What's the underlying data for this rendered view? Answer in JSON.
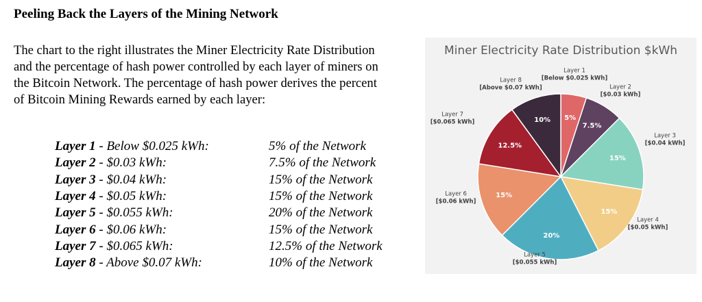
{
  "heading": "Peeling Back the Layers of the Mining Network",
  "paragraph": "The chart to the right illustrates the Miner Electricity Rate Distribution and the percentage of hash power controlled by each layer of miners on the Bitcoin Network. The percentage of hash power derives the percent of Bitcoin Mining Rewards earned by each layer:",
  "table": {
    "rows": [
      [
        "Layer 1",
        "- Below $0.025 kWh:",
        "5% of the Network"
      ],
      [
        "Layer 2",
        "- $0.03 kWh:",
        "7.5% of the Network"
      ],
      [
        "Layer 3",
        "- $0.04 kWh:",
        "15% of the Network"
      ],
      [
        "Layer 4",
        "- $0.05 kWh:",
        "15% of the Network"
      ],
      [
        "Layer 5",
        "- $0.055 kWh:",
        "20% of the Network"
      ],
      [
        "Layer 6",
        "- $0.06 kWh:",
        "15% of the Network"
      ],
      [
        "Layer 7",
        "- $0.065 kWh:",
        "12.5% of the Network"
      ],
      [
        "Layer 8",
        "- Above $0.07 kWh:",
        "10% of the Network"
      ]
    ]
  },
  "chart_data": {
    "type": "pie",
    "title": "Miner Electricity Rate Distribution $kWh",
    "categories": [
      "Layer 1",
      "Layer 2",
      "Layer 3",
      "Layer 4",
      "Layer 5",
      "Layer 6",
      "Layer 7",
      "Layer 8"
    ],
    "category_notes": [
      "[Below $0.025 kWh]",
      "[$0.03 kWh]",
      "[$0.04 kWh]",
      "[$0.05 kWh]",
      "[$0.055 kWh]",
      "[$0.06 kWh]",
      "[$0.065 kWh]",
      "[Above $0.07 kWh]"
    ],
    "values": [
      5,
      7.5,
      15,
      15,
      20,
      15,
      12.5,
      10
    ],
    "value_labels": [
      "5%",
      "7.5%",
      "15%",
      "15%",
      "20%",
      "15%",
      "12.5%",
      "10%"
    ],
    "colors": [
      "#e06767",
      "#5e4260",
      "#88d3bf",
      "#f2cd88",
      "#4eaec0",
      "#e9926c",
      "#a4202f",
      "#3b2a3c"
    ]
  }
}
